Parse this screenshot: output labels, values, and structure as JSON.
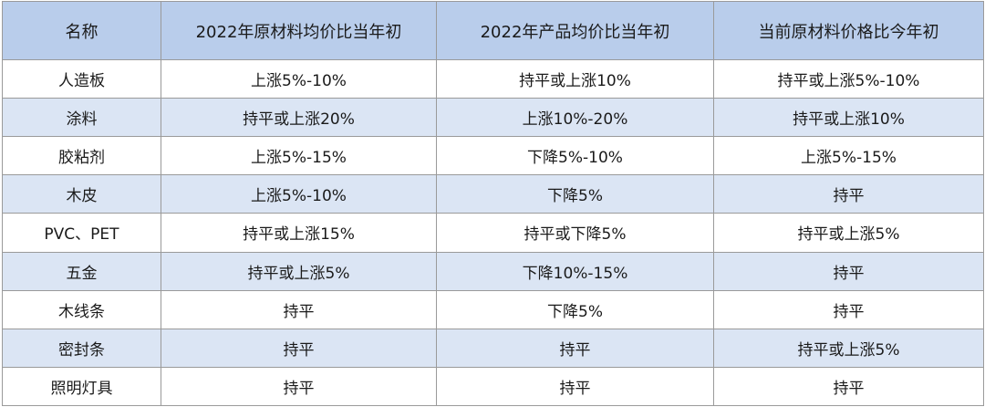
{
  "table": {
    "headers": [
      "名称",
      "2022年原材料均价比当年初",
      "2022年产品均价比当年初",
      "当前原材料价格比今年初"
    ],
    "rows": [
      [
        "人造板",
        "上涨5%-10%",
        "持平或上涨10%",
        "持平或上涨5%-10%"
      ],
      [
        "涂料",
        "持平或上涨20%",
        "上涨10%-20%",
        "持平或上涨10%"
      ],
      [
        "胶粘剂",
        "上涨5%-15%",
        "下降5%-10%",
        "上涨5%-15%"
      ],
      [
        "木皮",
        "上涨5%-10%",
        "下降5%",
        "持平"
      ],
      [
        "PVC、PET",
        "持平或上涨15%",
        "持平或下降5%",
        "持平或上涨5%"
      ],
      [
        "五金",
        "持平或上涨5%",
        "下降10%-15%",
        "持平"
      ],
      [
        "木线条",
        "持平",
        "下降5%",
        "持平"
      ],
      [
        "密封条",
        "持平",
        "持平",
        "持平或上涨5%"
      ],
      [
        "照明灯具",
        "持平",
        "持平",
        "持平"
      ]
    ]
  },
  "colors": {
    "header_bg": "#b9cdeb",
    "stripe_bg": "#dbe5f4",
    "row_bg": "#ffffff",
    "border": "#9a9a9a"
  }
}
